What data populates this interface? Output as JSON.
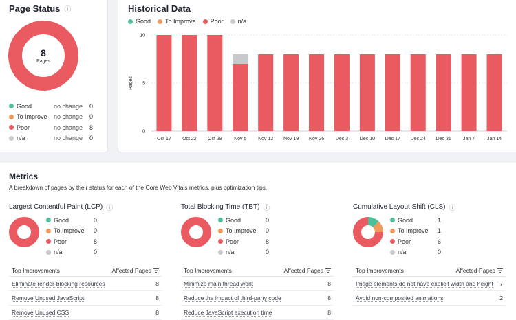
{
  "colors": {
    "good": "#4fbf99",
    "improve": "#f0995a",
    "poor": "#ea5b61",
    "na": "#c7c9cd"
  },
  "page_status": {
    "title": "Page Status",
    "total": "8",
    "total_label": "Pages",
    "legend": [
      {
        "label": "Good",
        "change": "no change",
        "value": "0"
      },
      {
        "label": "To Improve",
        "change": "no change",
        "value": "0"
      },
      {
        "label": "Poor",
        "change": "no change",
        "value": "8"
      },
      {
        "label": "n/a",
        "change": "no change",
        "value": "0"
      }
    ]
  },
  "historical": {
    "title": "Historical Data",
    "legend": [
      "Good",
      "To Improve",
      "Poor",
      "n/a"
    ]
  },
  "chart_data": {
    "type": "bar",
    "stacked": true,
    "ylabel": "Pages",
    "ylim": [
      0,
      10
    ],
    "yticks": [
      "0",
      "5",
      "10"
    ],
    "grid": true,
    "categories": [
      "Oct 17",
      "Oct 22",
      "Oct 29",
      "Nov 5",
      "Nov 12",
      "Nov 19",
      "Nov 26",
      "Dec 3",
      "Dec 10",
      "Dec 17",
      "Dec 24",
      "Dec 31",
      "Jan 7",
      "Jan 14"
    ],
    "series": [
      {
        "name": "Good",
        "values": [
          0,
          0,
          0,
          0,
          0,
          0,
          0,
          0,
          0,
          0,
          0,
          0,
          0,
          0
        ]
      },
      {
        "name": "To Improve",
        "values": [
          0,
          0,
          0,
          0,
          0,
          0,
          0,
          0,
          0,
          0,
          0,
          0,
          0,
          0
        ]
      },
      {
        "name": "Poor",
        "values": [
          10,
          10,
          10,
          7,
          8,
          8,
          8,
          8,
          8,
          8,
          8,
          8,
          8,
          8
        ]
      },
      {
        "name": "n/a",
        "values": [
          0,
          0,
          0,
          1,
          0,
          0,
          0,
          0,
          0,
          0,
          0,
          0,
          0,
          0
        ]
      }
    ]
  },
  "metrics": {
    "title": "Metrics",
    "subtitle": "A breakdown of pages by their status for each of the Core Web Vitals metrics, plus optimization tips.",
    "col_improvements": "Top Improvements",
    "col_affected": "Affected Pages",
    "cards": [
      {
        "title": "Largest Contentful Paint (LCP)",
        "counts": [
          0,
          0,
          8,
          0
        ],
        "legend": [
          {
            "label": "Good",
            "value": "0"
          },
          {
            "label": "To Improve",
            "value": "0"
          },
          {
            "label": "Poor",
            "value": "8"
          },
          {
            "label": "n/a",
            "value": "0"
          }
        ],
        "rows": [
          {
            "label": "Eliminate render-blocking resources",
            "value": "8"
          },
          {
            "label": "Remove Unused JavaScript",
            "value": "8"
          },
          {
            "label": "Remove Unused CSS",
            "value": "8"
          }
        ]
      },
      {
        "title": "Total Blocking Time (TBT)",
        "counts": [
          0,
          0,
          8,
          0
        ],
        "legend": [
          {
            "label": "Good",
            "value": "0"
          },
          {
            "label": "To Improve",
            "value": "0"
          },
          {
            "label": "Poor",
            "value": "8"
          },
          {
            "label": "n/a",
            "value": "0"
          }
        ],
        "rows": [
          {
            "label": "Minimize main thread work",
            "value": "8"
          },
          {
            "label": "Reduce the impact of third-party code",
            "value": "8"
          },
          {
            "label": "Reduce JavaScript execution time",
            "value": "8"
          }
        ]
      },
      {
        "title": "Cumulative Layout Shift (CLS)",
        "counts": [
          1,
          1,
          6,
          0
        ],
        "legend": [
          {
            "label": "Good",
            "value": "1"
          },
          {
            "label": "To Improve",
            "value": "1"
          },
          {
            "label": "Poor",
            "value": "6"
          },
          {
            "label": "n/a",
            "value": "0"
          }
        ],
        "rows": [
          {
            "label": "Image elements do not have explicit width and height",
            "value": "7"
          },
          {
            "label": "Avoid non-composited animations",
            "value": "2"
          }
        ]
      }
    ]
  }
}
